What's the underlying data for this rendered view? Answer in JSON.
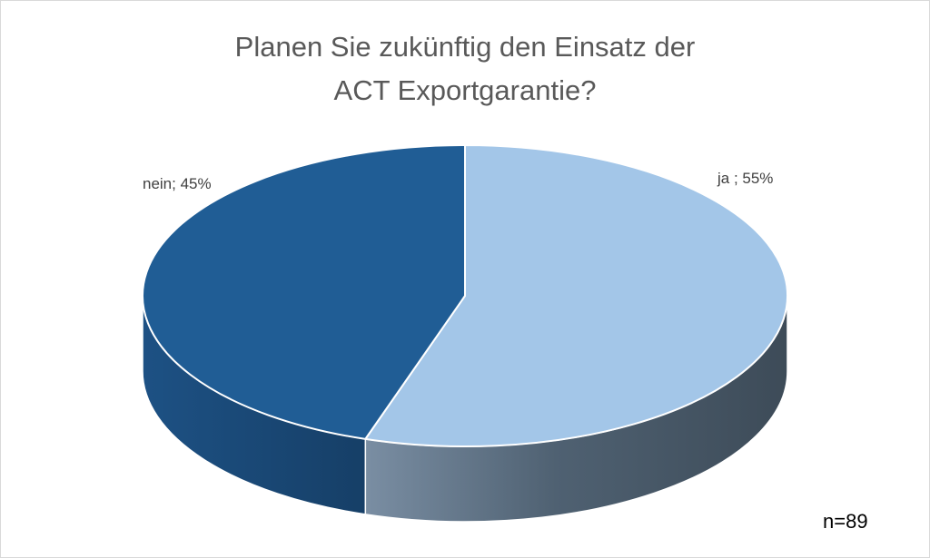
{
  "chart_data": {
    "type": "pie",
    "title_lines": [
      "Planen Sie zukünftig den Einsatz der",
      "ACT Exportgarantie?"
    ],
    "slices": [
      {
        "label": "ja",
        "value": 55,
        "display": "ja ; 55%"
      },
      {
        "label": "nein",
        "value": 45,
        "display": "nein; 45%"
      }
    ],
    "note": "n=89",
    "style": "3d",
    "colors": {
      "ja_top": "#a3c6e8",
      "ja_side_light": "#7a8ea3",
      "ja_side_dark": "#3d4b58",
      "nein_top": "#205d95",
      "nein_side": "#163f67"
    }
  }
}
